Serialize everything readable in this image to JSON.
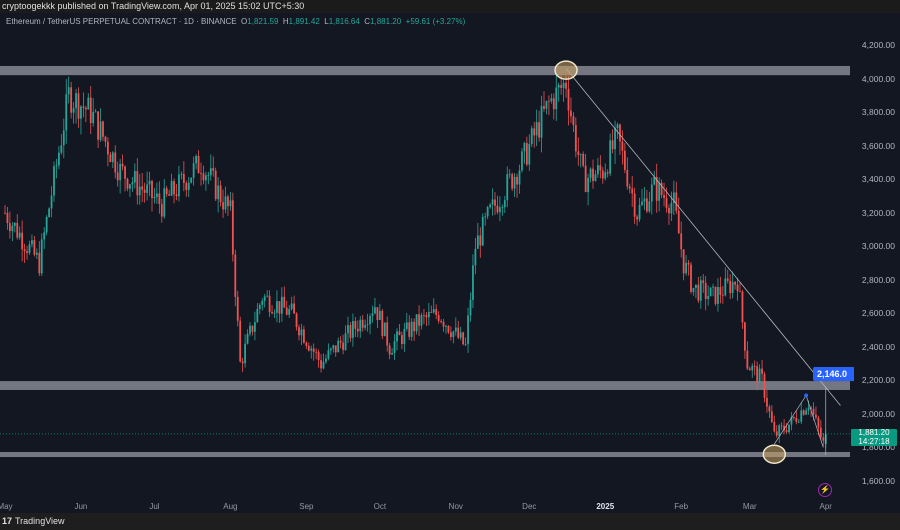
{
  "header": {
    "publisher": "cryptoogekkk published on TradingView.com, Apr 01, 2025 15:02 UTC+5:30",
    "symbol": "Ethereum / TetherUS PERPETUAL CONTRACT · 1D · BINANCE",
    "open_label": "O",
    "open": "1,821.59",
    "high_label": "H",
    "high": "1,891.42",
    "low_label": "L",
    "low": "1,816.64",
    "close_label": "C",
    "close": "1,881.20",
    "change": "+59.61 (+3.27%)"
  },
  "y_axis": {
    "labels": [
      "4,200.00",
      "4,000.00",
      "3,800.00",
      "3,600.00",
      "3,400.00",
      "3,200.00",
      "3,000.00",
      "2,800.00",
      "2,600.00",
      "2,400.00",
      "2,200.00",
      "2,000.00",
      "1,800.00",
      "1,600.00"
    ],
    "values": [
      4200,
      4000,
      3800,
      3600,
      3400,
      3200,
      3000,
      2800,
      2600,
      2400,
      2200,
      2000,
      1800,
      1600
    ]
  },
  "x_axis": {
    "labels": [
      "May",
      "Jun",
      "Jul",
      "Aug",
      "Sep",
      "Oct",
      "Nov",
      "Dec",
      "2025",
      "Feb",
      "Mar",
      "Apr"
    ],
    "dates": [
      "2024-05-01",
      "2024-06-01",
      "2024-07-01",
      "2024-08-01",
      "2024-09-01",
      "2024-10-01",
      "2024-11-01",
      "2024-12-01",
      "2025-01-01",
      "2025-02-01",
      "2025-03-01",
      "2025-04-01"
    ]
  },
  "current_price": {
    "value": 1881.2,
    "label": "1,881.20",
    "countdown": "14:27:18",
    "color": "#089981"
  },
  "target_tag": {
    "label": "2,146.0",
    "color": "#2962ff"
  },
  "zones": [
    {
      "from": 4020,
      "to": 4075
    },
    {
      "from": 2143,
      "to": 2196
    },
    {
      "from": 1743,
      "to": 1773
    }
  ],
  "trendline": {
    "from": {
      "date": "2024-12-16",
      "price": 4060
    },
    "to": {
      "date": "2025-04-07",
      "price": 2050
    }
  },
  "circles": [
    {
      "date": "2024-12-16",
      "price": 4050
    },
    {
      "date": "2025-03-11",
      "price": 1760
    }
  ],
  "colors": {
    "up": "#26a69a",
    "down": "#ef5350",
    "background": "#131722",
    "zone": "#9598a1"
  },
  "footer": {
    "brand": "TradingView",
    "logo": "17"
  },
  "chart_data": {
    "type": "candlestick",
    "keypoints": [
      [
        "2024-05-01",
        3200
      ],
      [
        "2024-05-15",
        2900
      ],
      [
        "2024-05-27",
        3900
      ],
      [
        "2024-06-05",
        3800
      ],
      [
        "2024-06-17",
        3450
      ],
      [
        "2024-07-04",
        3250
      ],
      [
        "2024-07-20",
        3500
      ],
      [
        "2024-08-01",
        3200
      ],
      [
        "2024-08-05",
        2300
      ],
      [
        "2024-08-14",
        2700
      ],
      [
        "2024-08-26",
        2600
      ],
      [
        "2024-09-07",
        2300
      ],
      [
        "2024-09-23",
        2550
      ],
      [
        "2024-09-29",
        2650
      ],
      [
        "2024-10-05",
        2400
      ],
      [
        "2024-10-17",
        2550
      ],
      [
        "2024-10-25",
        2600
      ],
      [
        "2024-11-05",
        2400
      ],
      [
        "2024-11-09",
        3000
      ],
      [
        "2024-11-15",
        3200
      ],
      [
        "2024-11-28",
        3500
      ],
      [
        "2024-12-09",
        3850
      ],
      [
        "2024-12-16",
        3980
      ],
      [
        "2024-12-19",
        3700
      ],
      [
        "2024-12-23",
        3400
      ],
      [
        "2024-12-31",
        3450
      ],
      [
        "2025-01-06",
        3650
      ],
      [
        "2025-01-14",
        3200
      ],
      [
        "2025-01-21",
        3350
      ],
      [
        "2025-01-29",
        3250
      ],
      [
        "2025-02-02",
        2900
      ],
      [
        "2025-02-06",
        2750
      ],
      [
        "2025-02-14",
        2700
      ],
      [
        "2025-02-24",
        2800
      ],
      [
        "2025-02-28",
        2300
      ],
      [
        "2025-03-06",
        2200
      ],
      [
        "2025-03-11",
        1870
      ],
      [
        "2025-03-18",
        1950
      ],
      [
        "2025-03-25",
        2070
      ],
      [
        "2025-03-31",
        1822
      ],
      [
        "2025-04-01",
        1881
      ]
    ]
  }
}
